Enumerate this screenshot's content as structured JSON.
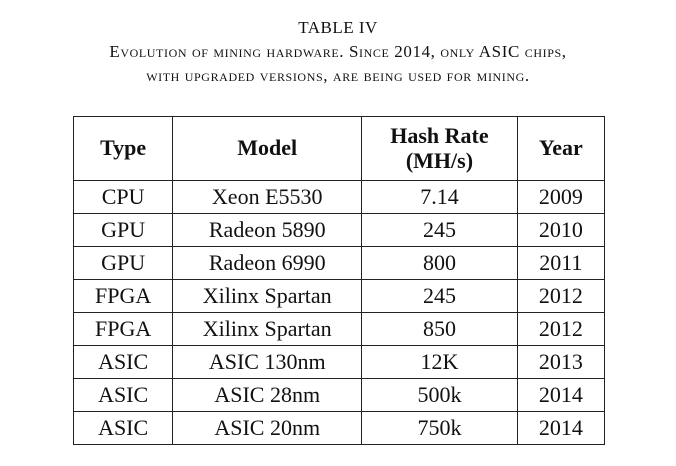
{
  "caption": {
    "title": "TABLE IV",
    "line1": "Evolution of mining hardware. Since 2014, only ASIC chips,",
    "line2": "with upgraded versions, are being used for mining."
  },
  "table": {
    "headers": {
      "type": "Type",
      "model": "Model",
      "hash_rate_line1": "Hash Rate",
      "hash_rate_line2": "(MH/s)",
      "year": "Year"
    },
    "rows": [
      {
        "type": "CPU",
        "model": "Xeon E5530",
        "hash_rate": "7.14",
        "year": "2009"
      },
      {
        "type": "GPU",
        "model": "Radeon 5890",
        "hash_rate": "245",
        "year": "2010"
      },
      {
        "type": "GPU",
        "model": "Radeon 6990",
        "hash_rate": "800",
        "year": "2011"
      },
      {
        "type": "FPGA",
        "model": "Xilinx Spartan",
        "hash_rate": "245",
        "year": "2012"
      },
      {
        "type": "FPGA",
        "model": "Xilinx Spartan",
        "hash_rate": "850",
        "year": "2012"
      },
      {
        "type": "ASIC",
        "model": "ASIC 130nm",
        "hash_rate": "12K",
        "year": "2013"
      },
      {
        "type": "ASIC",
        "model": "ASIC 28nm",
        "hash_rate": "500k",
        "year": "2014"
      },
      {
        "type": "ASIC",
        "model": "ASIC 20nm",
        "hash_rate": "750k",
        "year": "2014"
      }
    ]
  }
}
